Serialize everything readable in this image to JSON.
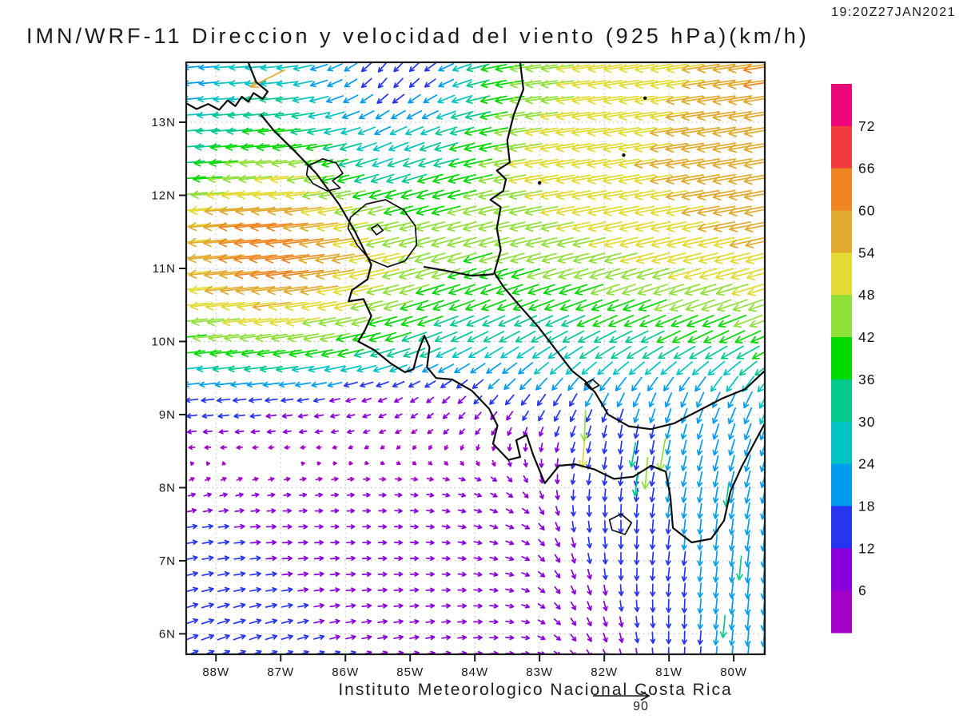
{
  "title": "IMN/WRF-11 Direccion y velocidad del viento (925 hPa)(km/h)",
  "timestamp": "19:20Z27JAN2021",
  "footer": "Instituto Meteorologico Nacional Costa Rica",
  "reference_arrow": {
    "label": "90",
    "speed_kmh": 90
  },
  "colorbar": {
    "unit": "km/h",
    "labels": [
      "72",
      "66",
      "60",
      "54",
      "48",
      "42",
      "36",
      "30",
      "24",
      "18",
      "12",
      "6"
    ],
    "colors_top_to_bottom": [
      "#ed0679",
      "#f23b3b",
      "#ef8621",
      "#e2aa2e",
      "#e3da33",
      "#90e03a",
      "#00d900",
      "#00ca8c",
      "#00c3c3",
      "#009cf0",
      "#2636f0",
      "#8a00dc",
      "#a400c8"
    ]
  },
  "axes": {
    "lat_ticks": [
      "13N",
      "12N",
      "11N",
      "10N",
      "9N",
      "8N",
      "7N",
      "6N"
    ],
    "lat_values": [
      13,
      12,
      11,
      10,
      9,
      8,
      7,
      6
    ],
    "lon_ticks": [
      "88W",
      "87W",
      "86W",
      "85W",
      "84W",
      "83W",
      "82W",
      "81W",
      "80W"
    ],
    "lon_values": [
      -88,
      -87,
      -86,
      -85,
      -84,
      -83,
      -82,
      -81,
      -80
    ]
  },
  "map": {
    "coastlines": [
      [
        [
          -87.5,
          13.82
        ],
        [
          -87.38,
          13.55
        ],
        [
          -87.2,
          13.42
        ],
        [
          -87.28,
          13.32
        ],
        [
          -87.42,
          13.4
        ],
        [
          -87.5,
          13.28
        ],
        [
          -87.6,
          13.35
        ],
        [
          -87.7,
          13.22
        ],
        [
          -87.82,
          13.3
        ],
        [
          -87.95,
          13.17
        ],
        [
          -88.12,
          13.25
        ],
        [
          -88.3,
          13.18
        ],
        [
          -88.46,
          13.26
        ]
      ],
      [
        [
          -87.3,
          13.1
        ],
        [
          -87.1,
          12.88
        ],
        [
          -86.8,
          12.62
        ],
        [
          -86.45,
          12.3
        ],
        [
          -86.1,
          11.88
        ],
        [
          -85.85,
          11.5
        ],
        [
          -85.6,
          11.05
        ],
        [
          -85.66,
          10.85
        ],
        [
          -85.9,
          10.7
        ],
        [
          -85.95,
          10.55
        ],
        [
          -85.72,
          10.58
        ],
        [
          -85.6,
          10.35
        ],
        [
          -85.7,
          10.15
        ],
        [
          -85.8,
          10.0
        ],
        [
          -85.55,
          9.88
        ],
        [
          -85.3,
          9.7
        ],
        [
          -85.08,
          9.58
        ],
        [
          -84.95,
          9.62
        ],
        [
          -84.88,
          9.85
        ],
        [
          -84.78,
          10.08
        ],
        [
          -84.7,
          9.92
        ],
        [
          -84.74,
          9.65
        ],
        [
          -84.6,
          9.5
        ],
        [
          -84.35,
          9.48
        ],
        [
          -84.05,
          9.33
        ],
        [
          -83.78,
          9.08
        ],
        [
          -83.65,
          8.85
        ],
        [
          -83.72,
          8.6
        ],
        [
          -83.48,
          8.38
        ],
        [
          -83.3,
          8.42
        ],
        [
          -83.36,
          8.65
        ],
        [
          -83.2,
          8.72
        ],
        [
          -83.1,
          8.45
        ],
        [
          -82.92,
          8.06
        ],
        [
          -82.7,
          8.3
        ],
        [
          -82.45,
          8.32
        ],
        [
          -82.15,
          8.25
        ],
        [
          -81.85,
          8.12
        ],
        [
          -81.55,
          8.15
        ],
        [
          -81.28,
          8.3
        ],
        [
          -81.05,
          8.22
        ],
        [
          -80.98,
          7.88
        ],
        [
          -80.94,
          7.45
        ],
        [
          -80.65,
          7.25
        ],
        [
          -80.35,
          7.3
        ],
        [
          -80.15,
          7.55
        ],
        [
          -80.05,
          7.95
        ],
        [
          -79.88,
          8.28
        ],
        [
          -79.72,
          8.55
        ],
        [
          -79.52,
          8.88
        ]
      ],
      [
        [
          -83.3,
          13.82
        ],
        [
          -83.25,
          13.45
        ],
        [
          -83.4,
          13.1
        ],
        [
          -83.5,
          12.75
        ],
        [
          -83.46,
          12.45
        ],
        [
          -83.66,
          12.34
        ],
        [
          -83.52,
          12.22
        ],
        [
          -83.56,
          12.06
        ],
        [
          -83.76,
          11.94
        ],
        [
          -83.6,
          11.84
        ],
        [
          -83.66,
          11.55
        ],
        [
          -83.6,
          11.25
        ],
        [
          -83.7,
          10.94
        ],
        [
          -83.55,
          10.74
        ],
        [
          -83.32,
          10.5
        ],
        [
          -83.02,
          10.2
        ],
        [
          -82.76,
          9.9
        ],
        [
          -82.5,
          9.6
        ],
        [
          -82.3,
          9.46
        ],
        [
          -82.14,
          9.3
        ],
        [
          -81.94,
          9.0
        ],
        [
          -81.62,
          8.84
        ],
        [
          -81.28,
          8.8
        ],
        [
          -80.92,
          8.88
        ],
        [
          -80.55,
          9.05
        ],
        [
          -80.18,
          9.22
        ],
        [
          -79.82,
          9.35
        ],
        [
          -79.52,
          9.6
        ]
      ],
      [
        [
          -84.78,
          11.02
        ],
        [
          -84.4,
          10.96
        ],
        [
          -84.05,
          10.9
        ],
        [
          -83.72,
          10.92
        ]
      ]
    ],
    "lakes": [
      [
        [
          -86.58,
          12.4
        ],
        [
          -86.35,
          12.5
        ],
        [
          -86.14,
          12.44
        ],
        [
          -86.04,
          12.3
        ],
        [
          -86.2,
          12.2
        ],
        [
          -86.08,
          12.1
        ],
        [
          -86.28,
          12.06
        ],
        [
          -86.5,
          12.16
        ],
        [
          -86.6,
          12.28
        ],
        [
          -86.58,
          12.4
        ]
      ],
      [
        [
          -85.92,
          11.7
        ],
        [
          -85.68,
          11.88
        ],
        [
          -85.38,
          11.94
        ],
        [
          -85.1,
          11.8
        ],
        [
          -84.92,
          11.58
        ],
        [
          -84.9,
          11.32
        ],
        [
          -85.08,
          11.1
        ],
        [
          -85.35,
          11.02
        ],
        [
          -85.62,
          11.12
        ],
        [
          -85.82,
          11.32
        ],
        [
          -85.96,
          11.55
        ],
        [
          -85.92,
          11.7
        ]
      ],
      [
        [
          -85.6,
          11.55
        ],
        [
          -85.5,
          11.6
        ],
        [
          -85.42,
          11.52
        ],
        [
          -85.52,
          11.46
        ],
        [
          -85.6,
          11.55
        ]
      ],
      [
        [
          -81.92,
          7.56
        ],
        [
          -81.74,
          7.64
        ],
        [
          -81.58,
          7.52
        ],
        [
          -81.68,
          7.36
        ],
        [
          -81.88,
          7.42
        ],
        [
          -81.92,
          7.56
        ]
      ],
      [
        [
          -82.3,
          9.42
        ],
        [
          -82.18,
          9.48
        ],
        [
          -82.08,
          9.4
        ],
        [
          -82.2,
          9.34
        ],
        [
          -82.3,
          9.42
        ]
      ]
    ],
    "island_dots": [
      [
        -81.37,
        13.33
      ],
      [
        -81.7,
        12.55
      ],
      [
        -83.0,
        12.17
      ]
    ]
  },
  "chart_data": {
    "type": "vector_field",
    "variable": "wind direction and speed",
    "level": "925 hPa",
    "units": "km/h",
    "lon_range": [
      -88.46,
      -79.52
    ],
    "lat_range": [
      5.72,
      13.82
    ],
    "speed_bin_edges": [
      6,
      12,
      18,
      24,
      30,
      36,
      42,
      48,
      54,
      60,
      66,
      72
    ],
    "grid": {
      "lons": [
        -88.5,
        -87.75,
        -87.0,
        -86.25,
        -85.5,
        -84.75,
        -84.0,
        -83.25,
        -82.5,
        -81.75,
        -81.0,
        -80.25,
        -79.5
      ],
      "lats": [
        13.5,
        12.9,
        12.3,
        11.7,
        11.1,
        10.5,
        9.9,
        9.3,
        8.7,
        8.1,
        7.5,
        6.9,
        6.3,
        5.7
      ],
      "u": [
        [
          -20,
          -26,
          -30,
          -20,
          -10,
          -12,
          -30,
          -44,
          -48,
          -50,
          -52,
          -55,
          -60
        ],
        [
          -30,
          -34,
          -38,
          -30,
          -20,
          -24,
          -36,
          -46,
          -50,
          -52,
          -54,
          -56,
          -58
        ],
        [
          -36,
          -44,
          -48,
          -40,
          -30,
          -34,
          -40,
          -48,
          -50,
          -52,
          -54,
          -56,
          -58
        ],
        [
          -50,
          -60,
          -60,
          -52,
          -44,
          -40,
          -42,
          -46,
          -48,
          -50,
          -52,
          -54,
          -56
        ],
        [
          -54,
          -60,
          -66,
          -58,
          -50,
          -44,
          -40,
          -42,
          -44,
          -46,
          -48,
          -50,
          -52
        ],
        [
          -48,
          -52,
          -54,
          -50,
          -44,
          -38,
          -34,
          -34,
          -36,
          -38,
          -40,
          -42,
          -44
        ],
        [
          -38,
          -40,
          -42,
          -40,
          -36,
          -30,
          -26,
          -24,
          -26,
          -28,
          -30,
          -32,
          -34
        ],
        [
          -16,
          -18,
          -16,
          -13,
          -10,
          -8,
          -10,
          -12,
          -10,
          -10,
          -8,
          -10,
          -12
        ],
        [
          -9,
          -8,
          -7,
          -6,
          -5,
          -4,
          -4,
          -2,
          -4,
          -2,
          -4,
          -6,
          -8
        ],
        [
          4,
          5,
          5,
          6,
          6,
          6,
          6,
          4,
          -2,
          -2,
          -4,
          -4,
          -6
        ],
        [
          12,
          12,
          10,
          8,
          8,
          8,
          8,
          8,
          2,
          0,
          -2,
          -2,
          -4
        ],
        [
          14,
          13,
          12,
          10,
          9,
          8,
          8,
          8,
          4,
          0,
          -2,
          -2,
          -2
        ],
        [
          15,
          14,
          13,
          11,
          10,
          9,
          9,
          8,
          5,
          2,
          0,
          -2,
          -2
        ],
        [
          16,
          15,
          14,
          12,
          11,
          10,
          9,
          8,
          6,
          3,
          0,
          -2,
          -2
        ]
      ],
      "v": [
        [
          -2,
          -2,
          -3,
          -8,
          -12,
          -10,
          -8,
          -6,
          -6,
          -7,
          -8,
          -8,
          -9
        ],
        [
          -2,
          -3,
          -4,
          -6,
          -10,
          -10,
          -8,
          -7,
          -7,
          -8,
          -8,
          -9,
          -10
        ],
        [
          -3,
          -4,
          -5,
          -8,
          -10,
          -10,
          -9,
          -8,
          -8,
          -9,
          -9,
          -10,
          -10
        ],
        [
          -4,
          -5,
          -6,
          -8,
          -10,
          -10,
          -10,
          -9,
          -9,
          -10,
          -10,
          -10,
          -11
        ],
        [
          -5,
          -6,
          -7,
          -9,
          -11,
          -12,
          -12,
          -11,
          -11,
          -12,
          -12,
          -12,
          -13
        ],
        [
          -5,
          -6,
          -7,
          -9,
          -11,
          -12,
          -13,
          -13,
          -13,
          -14,
          -14,
          -14,
          -15
        ],
        [
          -4,
          -5,
          -6,
          -8,
          -10,
          -12,
          -14,
          -15,
          -16,
          -16,
          -16,
          -17,
          -17
        ],
        [
          -2,
          -2,
          -2,
          -3,
          -4,
          -6,
          -10,
          -14,
          -16,
          -18,
          -18,
          -20,
          -22
        ],
        [
          -1,
          -1,
          -1,
          -1,
          -2,
          -3,
          -5,
          -8,
          -12,
          -16,
          -18,
          -20,
          -22
        ],
        [
          2,
          2,
          1,
          1,
          0,
          -1,
          -2,
          -6,
          -12,
          -16,
          -18,
          -20,
          -22
        ],
        [
          2,
          1,
          0,
          0,
          0,
          -1,
          -2,
          -4,
          -12,
          -16,
          -18,
          -20,
          -22
        ],
        [
          3,
          2,
          1,
          1,
          0,
          0,
          -1,
          -3,
          -10,
          -14,
          -16,
          -20,
          -24
        ],
        [
          5,
          4,
          3,
          2,
          1,
          1,
          0,
          -2,
          -8,
          -12,
          -16,
          -20,
          -24
        ],
        [
          7,
          6,
          5,
          4,
          3,
          2,
          1,
          0,
          -6,
          -10,
          -14,
          -18,
          -24
        ]
      ]
    },
    "gust_arrows": [
      {
        "lon": -82.32,
        "lat": 8.5,
        "u": -4,
        "v": -48
      },
      {
        "lon": -81.1,
        "lat": 8.45,
        "u": -8,
        "v": -46
      },
      {
        "lon": -82.3,
        "lat": 8.85,
        "u": -2,
        "v": -44
      },
      {
        "lon": -81.35,
        "lat": 8.2,
        "u": -4,
        "v": -45
      },
      {
        "lon": -81.55,
        "lat": 8.45,
        "u": -6,
        "v": -34
      },
      {
        "lon": -81.5,
        "lat": 8.05,
        "u": -5,
        "v": -33
      },
      {
        "lon": -80.1,
        "lat": 7.9,
        "u": -4,
        "v": -32
      },
      {
        "lon": -79.9,
        "lat": 6.9,
        "u": -3,
        "v": -33
      },
      {
        "lon": -80.15,
        "lat": 6.1,
        "u": -3,
        "v": -31
      },
      {
        "lon": -87.2,
        "lat": 13.6,
        "u": -50,
        "v": -25
      }
    ]
  }
}
